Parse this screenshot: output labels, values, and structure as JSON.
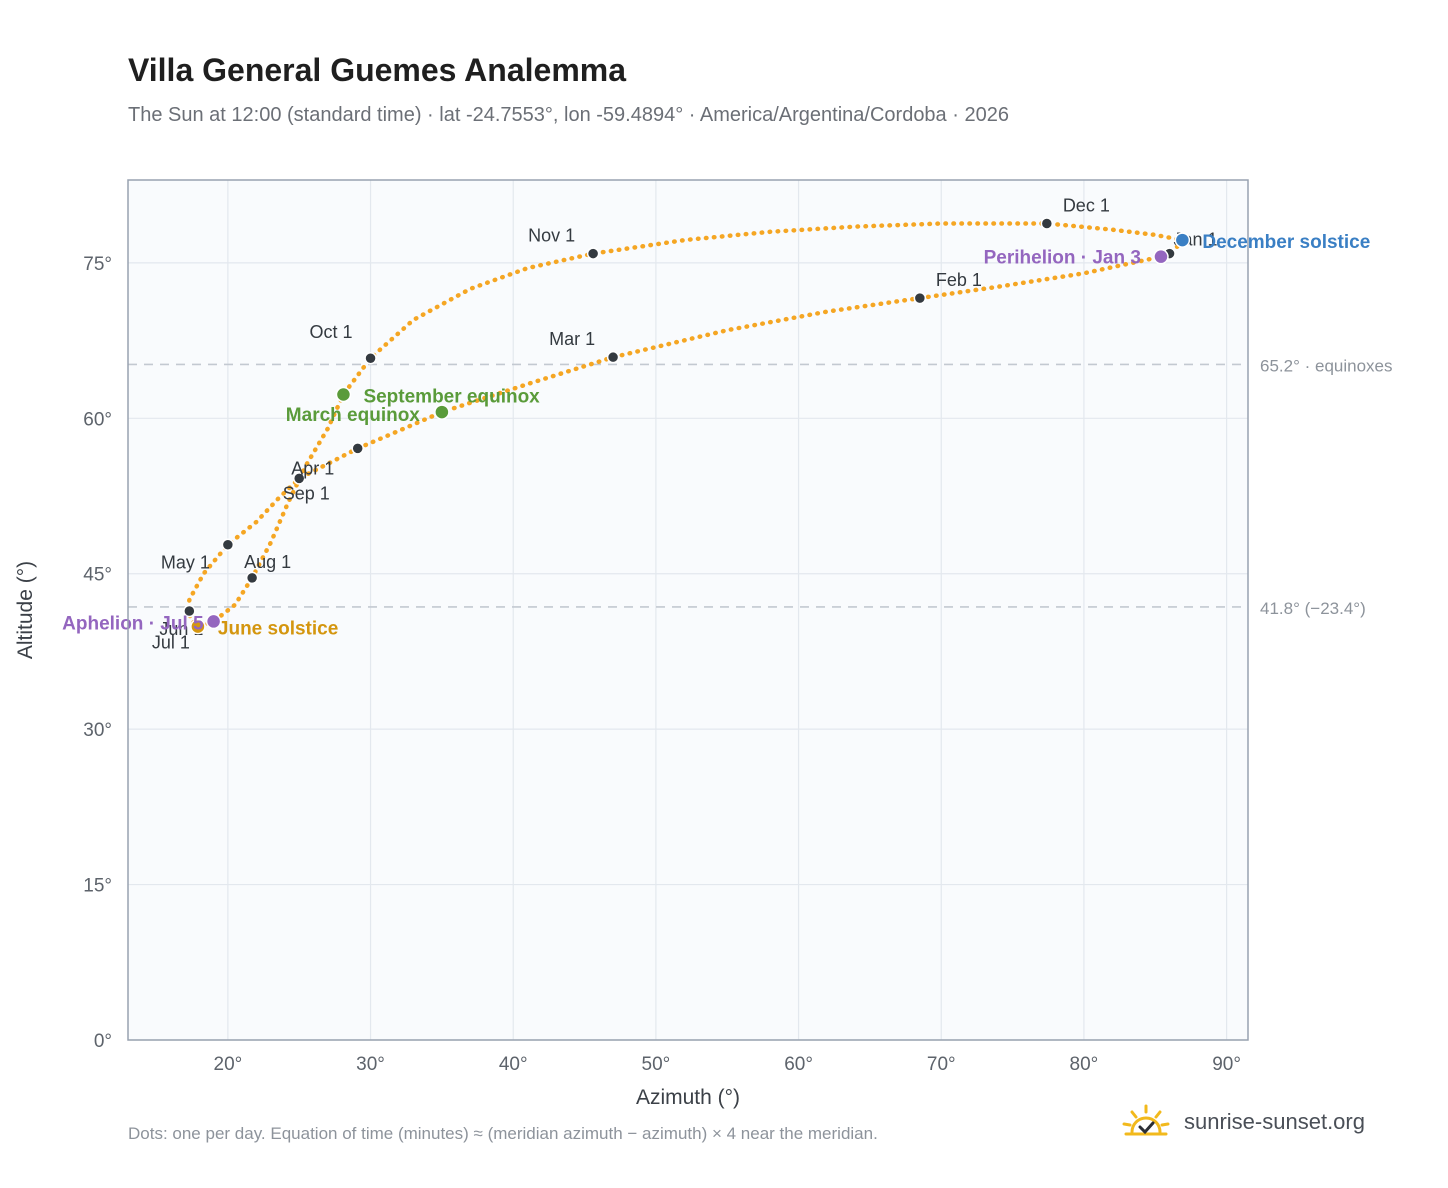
{
  "header": {
    "title": "Villa General Guemes Analemma",
    "subtitle": "The Sun at 12:00 (standard time) · lat -24.7553°, lon -59.4894° · America/Argentina/Cordoba · 2026"
  },
  "footer": {
    "note": "Dots: one per day. Equation of time (minutes) ≈ (meridian azimuth − azimuth) × 4 near the meridian.",
    "brand": "sunrise-sunset.org"
  },
  "colors": {
    "curve": "#f5a623",
    "month_dot": "#343a40",
    "equinox": "#5a9b3a",
    "june_solstice": "#d4960f",
    "december_solstice": "#3a7fc4",
    "apsis": "#9466bf",
    "plot_bg": "#f9fbfd",
    "grid": "#e3e8ee",
    "refline": "#c3c9d1",
    "frame": "#98a2b0"
  },
  "chart_data": {
    "type": "scatter",
    "xlabel": "Azimuth (°)",
    "ylabel": "Altitude (°)",
    "xlim": [
      13,
      91.5
    ],
    "ylim": [
      0,
      83
    ],
    "x_ticks": [
      20,
      30,
      40,
      50,
      60,
      70,
      80,
      90
    ],
    "y_ticks": [
      0,
      15,
      30,
      45,
      60,
      75
    ],
    "x_tick_labels": [
      "20°",
      "30°",
      "40°",
      "50°",
      "60°",
      "70°",
      "80°",
      "90°"
    ],
    "y_tick_labels": [
      "0°",
      "15°",
      "30°",
      "45°",
      "60°",
      "75°"
    ],
    "grid": true,
    "reference_lines": [
      {
        "y": 65.2,
        "label": "65.2° · equinoxes"
      },
      {
        "y": 41.8,
        "label": "41.8° (−23.4°)"
      }
    ],
    "analemma_path": [
      [
        86.9,
        77.2
      ],
      [
        86.2,
        76.0
      ],
      [
        85.4,
        75.6
      ],
      [
        80.0,
        74.0
      ],
      [
        74.0,
        72.7
      ],
      [
        68.5,
        71.6
      ],
      [
        62.0,
        70.3
      ],
      [
        55.0,
        68.5
      ],
      [
        47.0,
        65.9
      ],
      [
        41.0,
        63.3
      ],
      [
        35.0,
        60.6
      ],
      [
        32.0,
        58.8
      ],
      [
        29.1,
        57.1
      ],
      [
        27.0,
        55.6
      ],
      [
        25.0,
        54.2
      ],
      [
        23.5,
        52.2
      ],
      [
        22.0,
        50.0
      ],
      [
        20.0,
        47.8
      ],
      [
        18.3,
        45.0
      ],
      [
        17.3,
        42.5
      ],
      [
        17.2,
        41.4
      ],
      [
        17.5,
        40.4
      ],
      [
        18.0,
        39.9
      ],
      [
        19.0,
        40.4
      ],
      [
        20.5,
        42.0
      ],
      [
        21.7,
        44.6
      ],
      [
        23.0,
        48.0
      ],
      [
        24.2,
        51.8
      ],
      [
        25.5,
        55.5
      ],
      [
        27.0,
        59.0
      ],
      [
        28.1,
        62.3
      ],
      [
        30.0,
        65.8
      ],
      [
        33.0,
        69.5
      ],
      [
        37.0,
        72.5
      ],
      [
        41.0,
        74.5
      ],
      [
        45.6,
        75.9
      ],
      [
        52.0,
        77.2
      ],
      [
        58.0,
        78.0
      ],
      [
        64.0,
        78.5
      ],
      [
        70.0,
        78.8
      ],
      [
        77.4,
        78.8
      ],
      [
        82.0,
        78.2
      ],
      [
        85.0,
        77.7
      ],
      [
        86.9,
        77.2
      ]
    ],
    "month_points": [
      {
        "label": "Jan 1",
        "x": 86.0,
        "y": 75.9
      },
      {
        "label": "Feb 1",
        "x": 68.5,
        "y": 71.6
      },
      {
        "label": "Mar 1",
        "x": 47.0,
        "y": 65.9
      },
      {
        "label": "Apr 1",
        "x": 25.0,
        "y": 54.2
      },
      {
        "label": "May 1",
        "x": 20.0,
        "y": 47.8
      },
      {
        "label": "Jun 1",
        "x": 17.3,
        "y": 41.4
      },
      {
        "label": "Jul 1",
        "x": 17.9,
        "y": 39.9
      },
      {
        "label": "Aug 1",
        "x": 21.7,
        "y": 44.6
      },
      {
        "label": "Sep 1",
        "x": 29.1,
        "y": 57.1
      },
      {
        "label": "Oct 1",
        "x": 30.0,
        "y": 65.8
      },
      {
        "label": "Nov 1",
        "x": 45.6,
        "y": 75.9
      },
      {
        "label": "Dec 1",
        "x": 77.4,
        "y": 78.8
      }
    ],
    "events": [
      {
        "label": "March equinox",
        "x": 35.0,
        "y": 60.6,
        "kind": "equinox"
      },
      {
        "label": "September equinox",
        "x": 28.1,
        "y": 62.3,
        "kind": "equinox"
      },
      {
        "label": "June solstice",
        "x": 17.9,
        "y": 39.9,
        "kind": "june_solstice"
      },
      {
        "label": "December solstice",
        "x": 86.9,
        "y": 77.2,
        "kind": "december_solstice"
      },
      {
        "label": "Perihelion · Jan 3",
        "x": 85.4,
        "y": 75.6,
        "kind": "apsis"
      },
      {
        "label": "Aphelion · Jul 5",
        "x": 19.0,
        "y": 40.4,
        "kind": "apsis"
      }
    ]
  }
}
